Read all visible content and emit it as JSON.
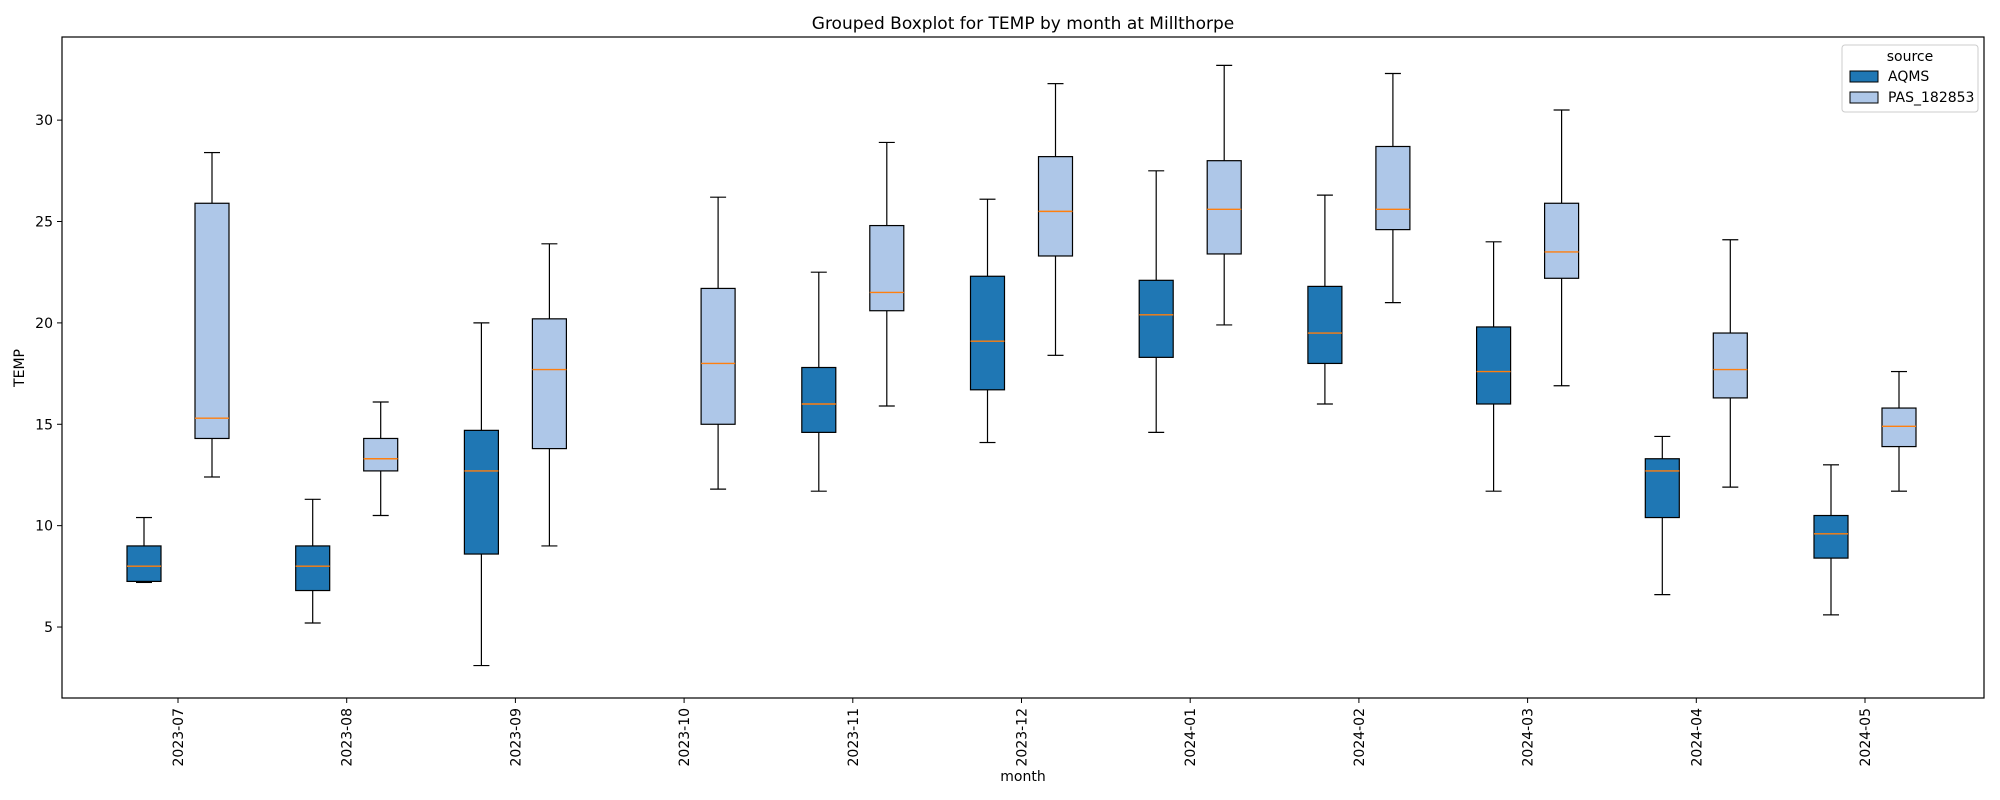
{
  "chart_data": {
    "type": "boxplot",
    "title": "Grouped Boxplot for TEMP by month at Millthorpe",
    "xlabel": "month",
    "ylabel": "TEMP",
    "ylim": [
      1.5,
      34.1
    ],
    "yticks": [
      5,
      10,
      15,
      20,
      25,
      30
    ],
    "grid": false,
    "legend": {
      "title": "source",
      "placement": "top-right"
    },
    "categories": [
      "2023-07",
      "2023-08",
      "2023-09",
      "2023-10",
      "2023-11",
      "2023-12",
      "2024-01",
      "2024-02",
      "2024-03",
      "2024-04",
      "2024-05"
    ],
    "series": [
      {
        "name": "AQMS",
        "color": "#1f77b4",
        "boxes": [
          {
            "whislo": 7.2,
            "q1": 7.25,
            "med": 8.0,
            "q3": 9.0,
            "whishi": 10.4
          },
          {
            "whislo": 5.2,
            "q1": 6.8,
            "med": 8.0,
            "q3": 9.0,
            "whishi": 11.3
          },
          {
            "whislo": 3.1,
            "q1": 8.6,
            "med": 12.7,
            "q3": 14.7,
            "whishi": 20.0
          },
          null,
          {
            "whislo": 11.7,
            "q1": 14.6,
            "med": 16.0,
            "q3": 17.8,
            "whishi": 22.5
          },
          {
            "whislo": 14.1,
            "q1": 16.7,
            "med": 19.1,
            "q3": 22.3,
            "whishi": 26.1
          },
          {
            "whislo": 14.6,
            "q1": 18.3,
            "med": 20.4,
            "q3": 22.1,
            "whishi": 27.5
          },
          {
            "whislo": 16.0,
            "q1": 18.0,
            "med": 19.5,
            "q3": 21.8,
            "whishi": 26.3
          },
          {
            "whislo": 11.7,
            "q1": 16.0,
            "med": 17.6,
            "q3": 19.8,
            "whishi": 24.0
          },
          {
            "whislo": 6.6,
            "q1": 10.4,
            "med": 12.7,
            "q3": 13.3,
            "whishi": 14.4
          },
          {
            "whislo": 5.6,
            "q1": 8.4,
            "med": 9.6,
            "q3": 10.5,
            "whishi": 13.0
          }
        ]
      },
      {
        "name": "PAS_182853",
        "color": "#aec7e8",
        "boxes": [
          {
            "whislo": 12.4,
            "q1": 14.3,
            "med": 15.3,
            "q3": 25.9,
            "whishi": 28.4
          },
          {
            "whislo": 10.5,
            "q1": 12.7,
            "med": 13.3,
            "q3": 14.3,
            "whishi": 16.1
          },
          {
            "whislo": 9.0,
            "q1": 13.8,
            "med": 17.7,
            "q3": 20.2,
            "whishi": 23.9
          },
          {
            "whislo": 11.8,
            "q1": 15.0,
            "med": 18.0,
            "q3": 21.7,
            "whishi": 26.2
          },
          {
            "whislo": 15.9,
            "q1": 20.6,
            "med": 21.5,
            "q3": 24.8,
            "whishi": 28.9
          },
          {
            "whislo": 18.4,
            "q1": 23.3,
            "med": 25.5,
            "q3": 28.2,
            "whishi": 31.8
          },
          {
            "whislo": 19.9,
            "q1": 23.4,
            "med": 25.6,
            "q3": 28.0,
            "whishi": 32.7
          },
          {
            "whislo": 21.0,
            "q1": 24.6,
            "med": 25.6,
            "q3": 28.7,
            "whishi": 32.3
          },
          {
            "whislo": 16.9,
            "q1": 22.2,
            "med": 23.5,
            "q3": 25.9,
            "whishi": 30.5
          },
          {
            "whislo": 11.9,
            "q1": 16.3,
            "med": 17.7,
            "q3": 19.5,
            "whishi": 24.1
          },
          {
            "whislo": 11.7,
            "q1": 13.9,
            "med": 14.9,
            "q3": 15.8,
            "whishi": 17.6
          }
        ]
      }
    ],
    "median_color": "#ff7f0e"
  }
}
